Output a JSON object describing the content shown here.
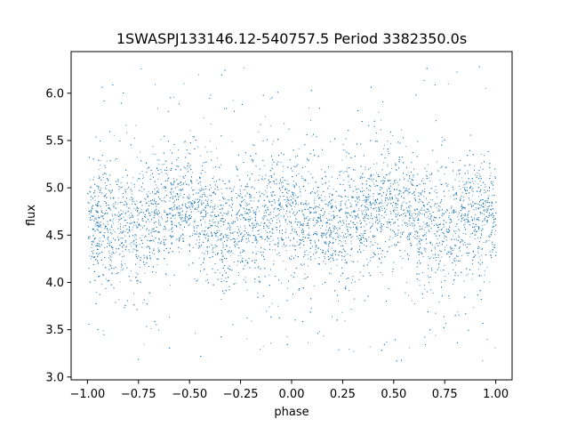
{
  "chart_data": {
    "type": "scatter",
    "title": "1SWASPJ133146.12-540757.5 Period 3382350.0s",
    "xlabel": "phase",
    "ylabel": "flux",
    "xlim": [
      -1.08,
      1.08
    ],
    "ylim": [
      2.97,
      6.44
    ],
    "xticks": [
      -1.0,
      -0.75,
      -0.5,
      -0.25,
      0.0,
      0.25,
      0.5,
      0.75,
      1.0
    ],
    "xtick_labels": [
      "−1.00",
      "−0.75",
      "−0.50",
      "−0.25",
      "0.00",
      "0.25",
      "0.50",
      "0.75",
      "1.00"
    ],
    "yticks": [
      3.0,
      3.5,
      4.0,
      4.5,
      5.0,
      5.5,
      6.0
    ],
    "ytick_labels": [
      "3.0",
      "3.5",
      "4.0",
      "4.5",
      "5.0",
      "5.5",
      "6.0"
    ],
    "grid": false,
    "legend": "none",
    "marker_color": "#1f77b4",
    "series": [
      {
        "x_range": [
          -1.0,
          1.0
        ],
        "y_median_by_phase": [
          [
            -1.0,
            4.7
          ],
          [
            -0.9,
            4.62
          ],
          [
            -0.8,
            4.55
          ],
          [
            -0.7,
            4.72
          ],
          [
            -0.6,
            4.82
          ],
          [
            -0.5,
            4.82
          ],
          [
            -0.4,
            4.68
          ],
          [
            -0.3,
            4.55
          ],
          [
            -0.2,
            4.62
          ],
          [
            -0.1,
            4.75
          ],
          [
            0.0,
            4.7
          ],
          [
            0.1,
            4.62
          ],
          [
            0.2,
            4.55
          ],
          [
            0.3,
            4.72
          ],
          [
            0.4,
            4.82
          ],
          [
            0.5,
            4.82
          ],
          [
            0.6,
            4.68
          ],
          [
            0.7,
            4.55
          ],
          [
            0.8,
            4.62
          ],
          [
            0.9,
            4.75
          ],
          [
            1.0,
            4.7
          ]
        ],
        "core_spread": 0.3,
        "outlier_range": [
          3.15,
          6.3
        ]
      }
    ]
  }
}
